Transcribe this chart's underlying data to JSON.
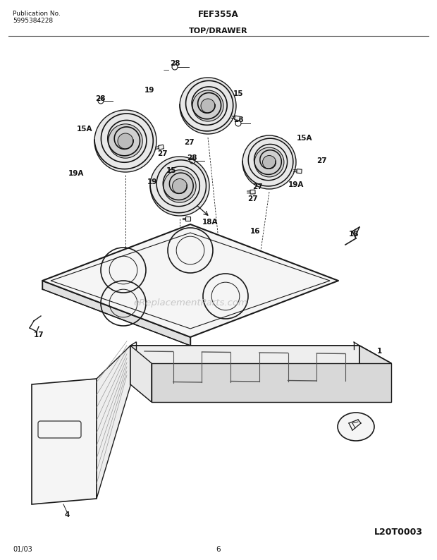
{
  "title": "FEF355A",
  "subtitle": "TOP/DRAWER",
  "pub_no_label": "Publication No.",
  "pub_no": "5995384228",
  "date": "01/03",
  "page": "6",
  "diagram_id": "L20T0003",
  "watermark": "eReplacementParts.com",
  "bg_color": "#ffffff",
  "line_color": "#1a1a1a",
  "text_color": "#111111",
  "watermark_color": "#bbbbbb"
}
